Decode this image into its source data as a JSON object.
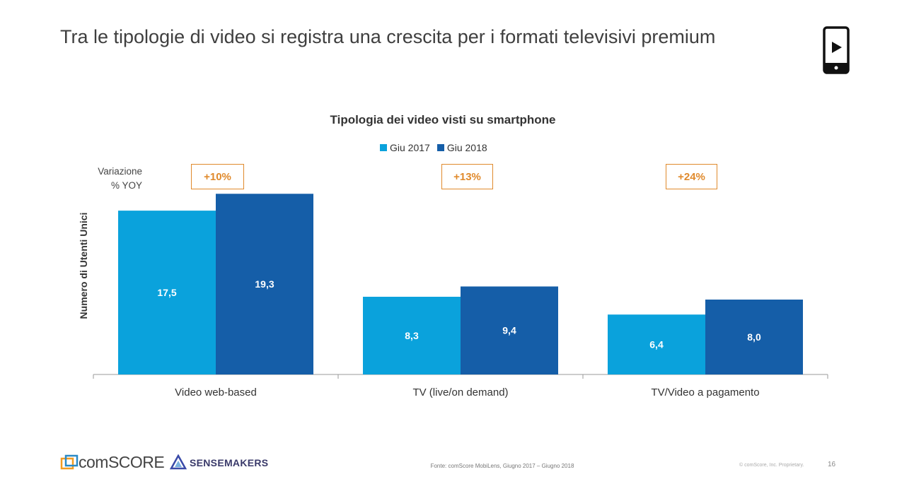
{
  "slide": {
    "title": "Tra le tipologie di video si registra una crescita per i formati televisivi premium",
    "icon": "smartphone-play-icon"
  },
  "yoy": {
    "label_line1": "Variazione",
    "label_line2": "% YOY",
    "values": [
      "+10%",
      "+13%",
      "+24%"
    ],
    "color": "#e08a2c"
  },
  "chart_data": {
    "type": "bar",
    "title": "Tipologia dei video visti su smartphone",
    "ylabel": "Numero di Utenti Unici",
    "xlabel": "",
    "categories": [
      "Video web-based",
      "TV (live/on demand)",
      "TV/Video a pagamento"
    ],
    "series": [
      {
        "name": "Giu 2017",
        "values": [
          17.5,
          8.3,
          6.4
        ],
        "labels": [
          "17,5",
          "8,3",
          "6,4"
        ],
        "color": "#0aa2dc"
      },
      {
        "name": "Giu 2018",
        "values": [
          19.3,
          9.4,
          8.0
        ],
        "labels": [
          "19,3",
          "9,4",
          "8,0"
        ],
        "color": "#155ea8"
      }
    ],
    "ylim": [
      0,
      20
    ],
    "grid": false,
    "legend": "top-center"
  },
  "footer": {
    "brand1": "comSCORE",
    "brand2": "SENSEMAKERS",
    "source": "Fonte: comScore MobiLens, Giugno 2017 – Giugno 2018",
    "copyright": "© comScore, Inc. Proprietary.",
    "page": "16"
  }
}
